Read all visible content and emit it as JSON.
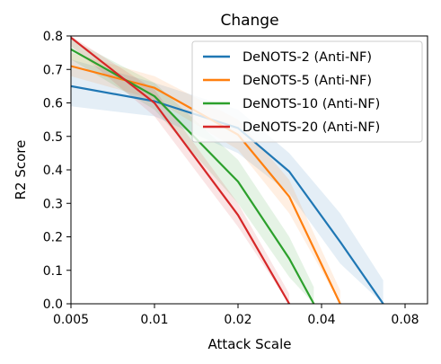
{
  "chart_data": {
    "type": "line",
    "title": "Change",
    "xlabel": "Attack Scale",
    "ylabel": "R2 Score",
    "x_ticks": [
      "0.005",
      "0.01",
      "0.02",
      "0.04",
      "0.08"
    ],
    "x_tick_values": [
      0.005,
      0.01,
      0.02,
      0.04,
      0.08
    ],
    "y_ticks": [
      "0.0",
      "0.1",
      "0.2",
      "0.3",
      "0.4",
      "0.5",
      "0.6",
      "0.7",
      "0.8"
    ],
    "ylim": [
      0,
      0.8
    ],
    "legend_position": "top-right",
    "series": [
      {
        "name": "DeNOTS-2 (Anti-NF)",
        "color": "#1f77b4",
        "points": [
          [
            0.005,
            0.65
          ],
          [
            0.01,
            0.605
          ],
          [
            0.02,
            0.525
          ],
          [
            0.0306,
            0.395
          ],
          [
            0.0467,
            0.185
          ],
          [
            0.0667,
            0.0
          ]
        ],
        "band_upper": [
          0.73,
          0.66,
          0.58,
          0.45,
          0.27,
          0.07
        ],
        "band_lower": [
          0.59,
          0.56,
          0.45,
          0.33,
          0.12,
          0.0
        ]
      },
      {
        "name": "DeNOTS-5 (Anti-NF)",
        "color": "#ff7f0e",
        "points": [
          [
            0.005,
            0.71
          ],
          [
            0.01,
            0.645
          ],
          [
            0.02,
            0.505
          ],
          [
            0.0306,
            0.32
          ],
          [
            0.0467,
            0.0
          ]
        ],
        "band_upper": [
          0.75,
          0.68,
          0.55,
          0.37,
          0.04
        ],
        "band_lower": [
          0.68,
          0.61,
          0.46,
          0.27,
          0.0
        ]
      },
      {
        "name": "DeNOTS-10 (Anti-NF)",
        "color": "#2ca02c",
        "points": [
          [
            0.005,
            0.76
          ],
          [
            0.01,
            0.62
          ],
          [
            0.02,
            0.365
          ],
          [
            0.0306,
            0.135
          ],
          [
            0.0375,
            0.0
          ]
        ],
        "band_upper": [
          0.79,
          0.66,
          0.43,
          0.2,
          0.05
        ],
        "band_lower": [
          0.73,
          0.58,
          0.3,
          0.08,
          0.0
        ]
      },
      {
        "name": "DeNOTS-20 (Anti-NF)",
        "color": "#d62728",
        "points": [
          [
            0.005,
            0.795
          ],
          [
            0.01,
            0.6
          ],
          [
            0.02,
            0.265
          ],
          [
            0.0306,
            0.0
          ]
        ],
        "band_upper": [
          0.8,
          0.64,
          0.3,
          0.03
        ],
        "band_lower": [
          0.77,
          0.56,
          0.23,
          0.0
        ]
      }
    ]
  }
}
